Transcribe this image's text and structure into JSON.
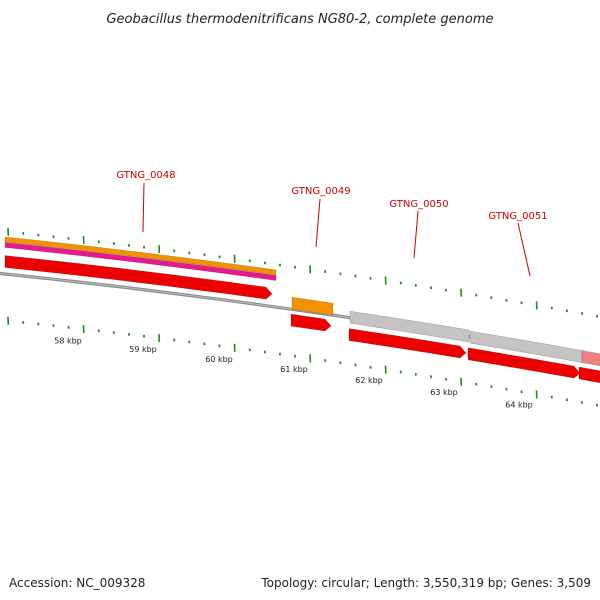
{
  "title": "Geobacillus thermodenitrificans NG80-2, complete genome",
  "footer": {
    "accession": "Accession: NC_009328",
    "summary": "Topology: circular; Length: 3,550,319 bp; Genes: 3,509"
  },
  "genes": [
    {
      "label": "GTNG_0048"
    },
    {
      "label": "GTNG_0049"
    },
    {
      "label": "GTNG_0050"
    },
    {
      "label": "GTNG_0051"
    }
  ],
  "scale_labels": [
    "58 kbp",
    "59 kbp",
    "60 kbp",
    "61 kbp",
    "62 kbp",
    "63 kbp",
    "64 kbp"
  ],
  "colors": {
    "cds": "#ee0000",
    "cds_edge": "#aa0000",
    "orange": "#f39200",
    "magenta": "#e8198a",
    "grey": "#c4c4c4",
    "pink": "#ee8080",
    "backbone": "#8a8a8a",
    "tick": "#1e8c1e",
    "label": "#cc0000"
  }
}
